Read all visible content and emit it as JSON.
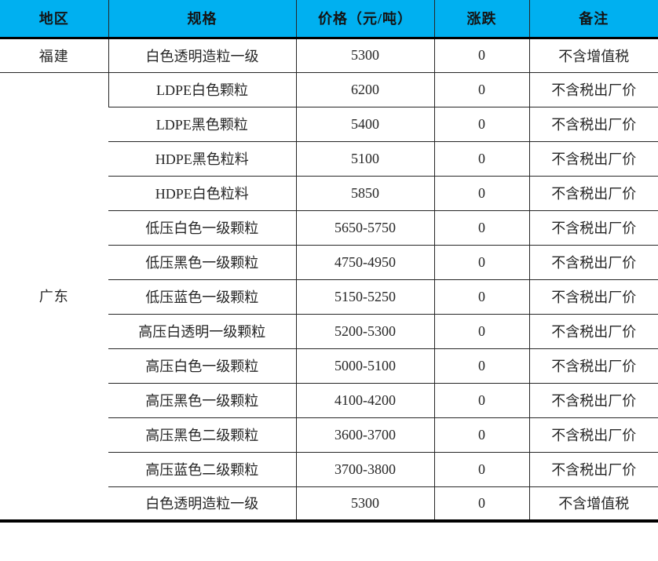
{
  "colors": {
    "header_bg": "#00B0F0",
    "header_text": "#141414",
    "body_text": "#262626",
    "grid_line": "#262626",
    "heavy_border": "#000000"
  },
  "table": {
    "columns": [
      {
        "key": "region",
        "label": "地区"
      },
      {
        "key": "spec",
        "label": "规格"
      },
      {
        "key": "price",
        "label": "价格（元/吨）"
      },
      {
        "key": "change",
        "label": "涨跌"
      },
      {
        "key": "note",
        "label": "备注"
      }
    ],
    "rows": [
      {
        "region": "福建",
        "region_rowspan": 1,
        "spec": "白色透明造粒一级",
        "price": "5300",
        "change": "0",
        "note": "不含增值税"
      },
      {
        "region": "广东",
        "region_rowspan": 14,
        "spec": "LDPE白色颗粒",
        "price": "6200",
        "change": "0",
        "note": "不含税出厂价"
      },
      {
        "spec": "LDPE黑色颗粒",
        "price": "5400",
        "change": "0",
        "note": "不含税出厂价"
      },
      {
        "spec": "HDPE黑色粒料",
        "price": "5100",
        "change": "0",
        "note": "不含税出厂价"
      },
      {
        "spec": "HDPE白色粒料",
        "price": "5850",
        "change": "0",
        "note": "不含税出厂价"
      },
      {
        "spec": "低压白色一级颗粒",
        "price": "5650-5750",
        "change": "0",
        "note": "不含税出厂价"
      },
      {
        "spec": "低压黑色一级颗粒",
        "price": "4750-4950",
        "change": "0",
        "note": "不含税出厂价"
      },
      {
        "spec": "低压蓝色一级颗粒",
        "price": "5150-5250",
        "change": "0",
        "note": "不含税出厂价"
      },
      {
        "spec": "高压白透明一级颗粒",
        "price": "5200-5300",
        "change": "0",
        "note": "不含税出厂价"
      },
      {
        "spec": "高压白色一级颗粒",
        "price": "5000-5100",
        "change": "0",
        "note": "不含税出厂价"
      },
      {
        "spec": "高压黑色一级颗粒",
        "price": "4100-4200",
        "change": "0",
        "note": "不含税出厂价"
      },
      {
        "spec": "高压黑色二级颗粒",
        "price": "3600-3700",
        "change": "0",
        "note": "不含税出厂价"
      },
      {
        "spec": "高压蓝色二级颗粒",
        "price": "3700-3800",
        "change": "0",
        "note": "不含税出厂价"
      },
      {
        "spec": "白色透明造粒一级",
        "price": "5300",
        "change": "0",
        "note": "不含增值税"
      }
    ]
  }
}
